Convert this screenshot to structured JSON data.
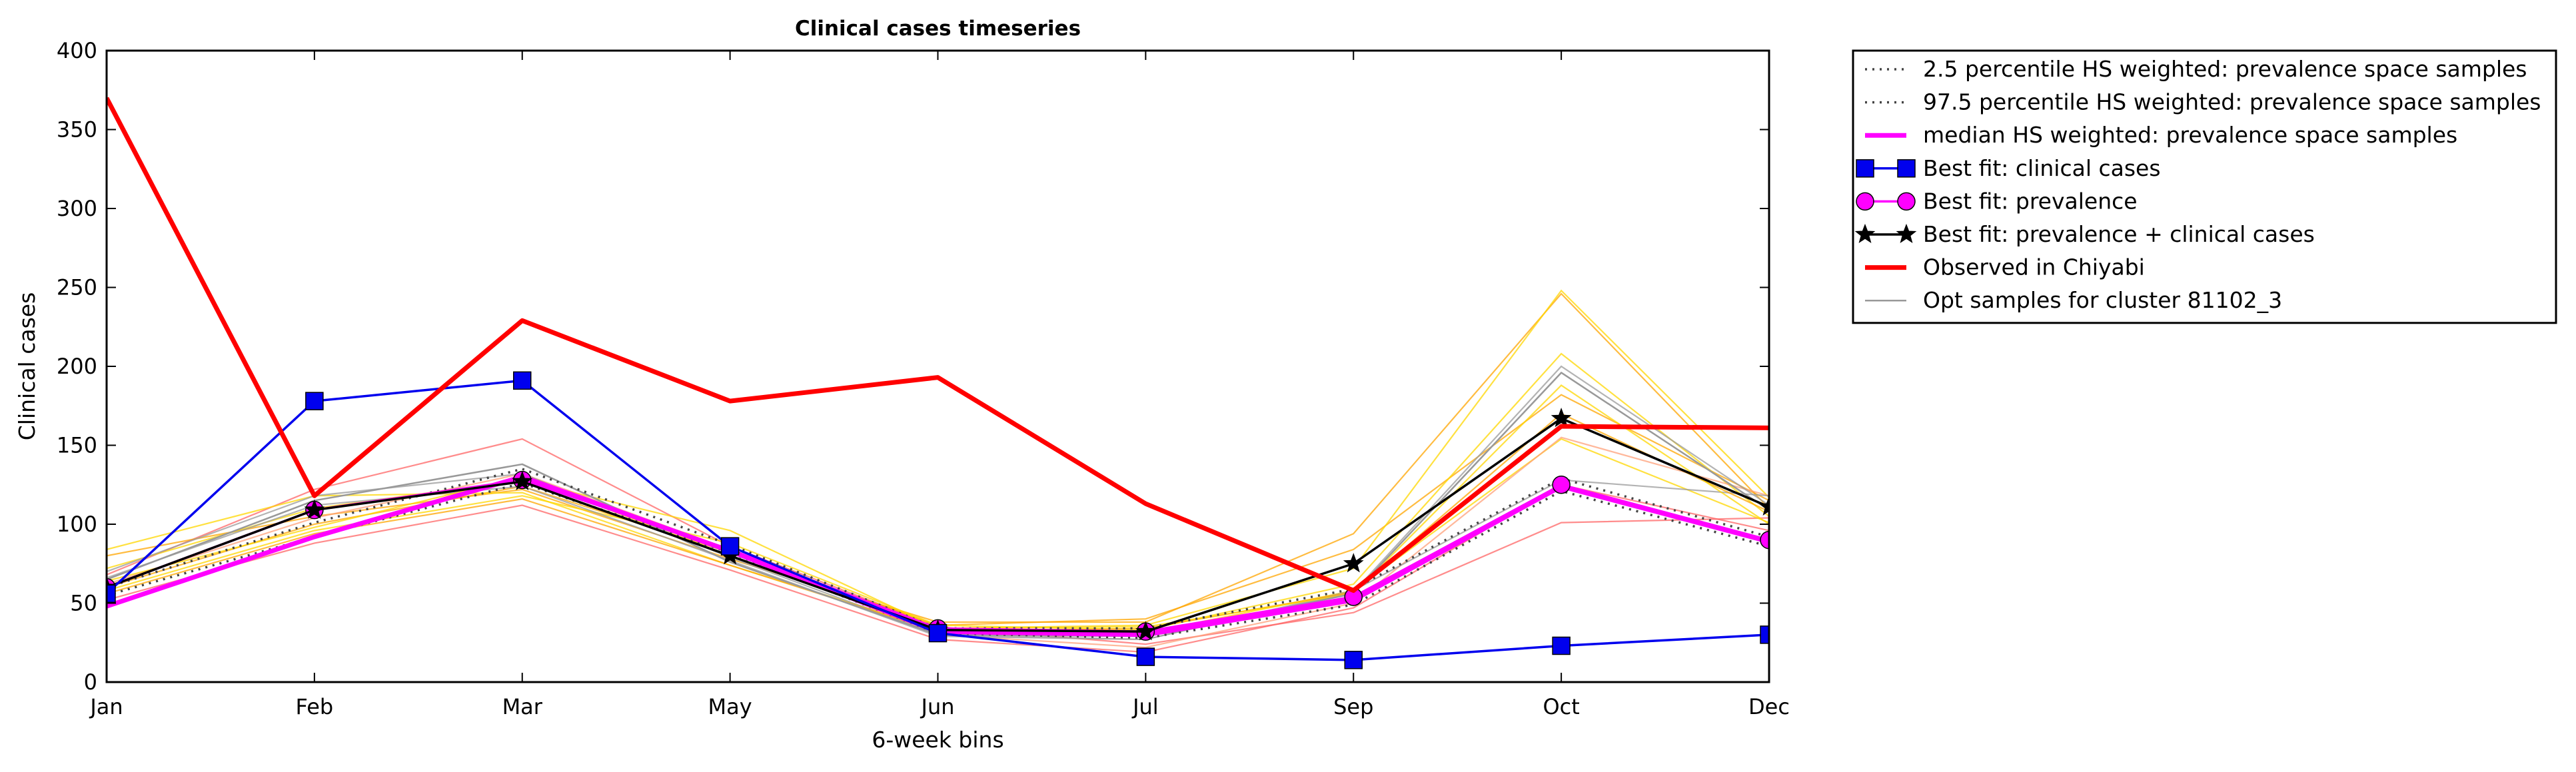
{
  "chart_data": {
    "type": "line",
    "title": "Clinical cases timeseries",
    "xlabel": "6-week bins",
    "ylabel": "Clinical cases",
    "categories": [
      "Jan",
      "Feb",
      "Mar",
      "May",
      "Jun",
      "Jul",
      "Sep",
      "Oct",
      "Dec"
    ],
    "ylim": [
      0,
      400
    ],
    "yticks": [
      0,
      50,
      100,
      150,
      200,
      250,
      300,
      350,
      400
    ],
    "grid": false,
    "legend_position": "outside-right-top",
    "series": [
      {
        "name": "2.5 percentile HS weighted: prevalence space samples",
        "style": "dotted",
        "color": "#444444",
        "marker": "none",
        "values": [
          55,
          92,
          126,
          82,
          31,
          28,
          49,
          121,
          86
        ]
      },
      {
        "name": "97.5 percentile HS weighted: prevalence space samples",
        "style": "dotted",
        "color": "#444444",
        "marker": "none",
        "values": [
          60,
          101,
          135,
          87,
          34,
          34,
          59,
          129,
          92
        ]
      },
      {
        "name": "median HS weighted: prevalence space samples",
        "style": "solid",
        "color": "#ff00ff",
        "marker": "none",
        "values": [
          48,
          92,
          130,
          83,
          32,
          30,
          52,
          124,
          89
        ]
      },
      {
        "name": "Best fit: clinical cases",
        "style": "solid",
        "color": "#0000ee",
        "marker": "square",
        "values": [
          56,
          178,
          191,
          86,
          31,
          16,
          14,
          23,
          30
        ]
      },
      {
        "name": "Best fit: prevalence",
        "style": "solid",
        "color": "#ff00ff",
        "marker": "circle",
        "values": [
          60,
          109,
          128,
          84,
          34,
          32,
          54,
          125,
          90
        ]
      },
      {
        "name": "Best fit: prevalence + clinical cases",
        "style": "solid",
        "color": "#000000",
        "marker": "star",
        "values": [
          60,
          109,
          127,
          80,
          33,
          32,
          75,
          167,
          111
        ]
      },
      {
        "name": "Observed in Chiyabi",
        "style": "solid",
        "color": "#ff0000",
        "marker": "none",
        "values": [
          370,
          118,
          229,
          178,
          193,
          113,
          58,
          162,
          161
        ]
      },
      {
        "name": "Opt samples for cluster 81102_3",
        "style": "solid",
        "color": "#999999",
        "marker": "none",
        "values": [
          65,
          115,
          138,
          76,
          30,
          29,
          56,
          196,
          109
        ]
      }
    ],
    "sample_lines": [
      {
        "color": "#ff6666",
        "values": [
          68,
          122,
          154,
          86,
          35,
          24,
          44,
          101,
          104
        ]
      },
      {
        "color": "#ff6666",
        "values": [
          52,
          88,
          112,
          71,
          27,
          19,
          47,
          125,
          96
        ]
      },
      {
        "color": "#ffa500",
        "values": [
          80,
          105,
          122,
          78,
          38,
          38,
          94,
          246,
          110
        ]
      },
      {
        "color": "#ffa500",
        "values": [
          60,
          100,
          124,
          82,
          36,
          40,
          84,
          182,
          115
        ]
      },
      {
        "color": "#ffd700",
        "values": [
          72,
          110,
          128,
          96,
          34,
          36,
          72,
          248,
          117
        ]
      },
      {
        "color": "#ffd700",
        "values": [
          58,
          96,
          118,
          88,
          36,
          33,
          62,
          208,
          105
        ]
      },
      {
        "color": "#ffd700",
        "values": [
          84,
          118,
          120,
          74,
          33,
          31,
          58,
          154,
          101
        ]
      },
      {
        "color": "#ffa07a",
        "values": [
          62,
          104,
          132,
          84,
          30,
          22,
          50,
          155,
          118
        ]
      },
      {
        "color": "#999999",
        "values": [
          66,
          112,
          124,
          77,
          29,
          27,
          57,
          200,
          112
        ]
      },
      {
        "color": "#999999",
        "values": [
          70,
          118,
          132,
          79,
          30,
          27,
          58,
          128,
          118
        ]
      },
      {
        "color": "#ffa500",
        "values": [
          56,
          94,
          116,
          74,
          32,
          34,
          57,
          170,
          108
        ]
      },
      {
        "color": "#ffd700",
        "values": [
          64,
          98,
          130,
          80,
          34,
          35,
          56,
          188,
          100
        ]
      }
    ]
  }
}
